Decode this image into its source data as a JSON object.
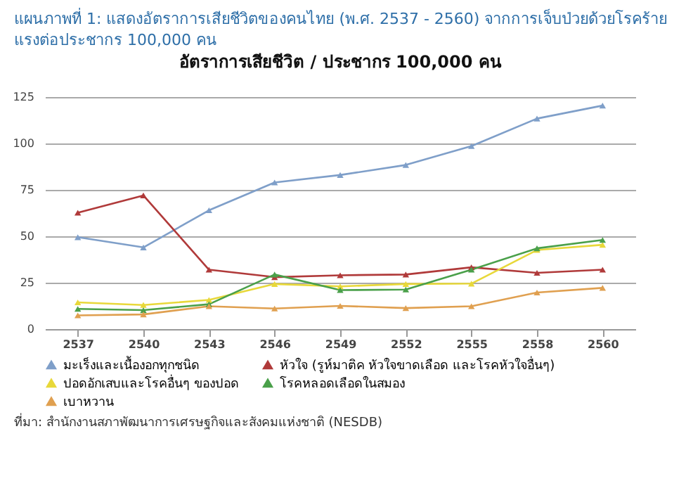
{
  "chart_data": {
    "type": "line",
    "title": "แผนภาพที่ 1: แสดงอัตราการเสียชีวิตของคนไทย (พ.ศ. 2537 - 2560) จากการเจ็บป่วยด้วยโรคร้ายแรงต่อประชากร 100,000 คน",
    "subtitle": "อัตราการเสียชีวิต / ประชากร 100,000 คน",
    "annotations": [
      "ที่มา: สำนักงานสภาพัฒนาการเศรษฐกิจและสังคมแห่งชาติ (NESDB)"
    ],
    "categories": [
      "2537",
      "2540",
      "2543",
      "2546",
      "2549",
      "2552",
      "2555",
      "2558",
      "2560"
    ],
    "series": [
      {
        "name": "มะเร็งและเนื้องอกทุกชนิด",
        "color": "#7f9fc9",
        "values": [
          49.5,
          44,
          64,
          79,
          83,
          88.4,
          98.6,
          113.4,
          120.4
        ]
      },
      {
        "name": "หัวใจ (รูห์มาติค หัวใจขาดเลือด และโรคหัวใจอื่นๆ)",
        "color": "#b03a3a",
        "values": [
          62.7,
          72,
          32,
          28,
          29,
          29.4,
          33.3,
          30.3,
          32
        ]
      },
      {
        "name": "ปอดอักเสบและโรคอื่นๆ ของปอด",
        "color": "#e8d83a",
        "values": [
          14.4,
          13,
          15.7,
          24.3,
          23,
          24.3,
          24.5,
          42.6,
          45.4
        ]
      },
      {
        "name": "โรคหลอดเลือดในสมอง",
        "color": "#4aa04a",
        "values": [
          10.9,
          10.2,
          13.4,
          29.4,
          21,
          21.3,
          32,
          43.5,
          48
        ]
      },
      {
        "name": "เบาหวาน",
        "color": "#e0a050",
        "values": [
          7.4,
          7.9,
          12.3,
          11.1,
          12.5,
          11.3,
          12.3,
          19.7,
          22.2
        ]
      }
    ],
    "ylim": [
      0,
      125
    ],
    "yticks": [
      0,
      25,
      50,
      75,
      100,
      125
    ],
    "grid": "y",
    "legend": "bottom",
    "marker": "triangle"
  }
}
